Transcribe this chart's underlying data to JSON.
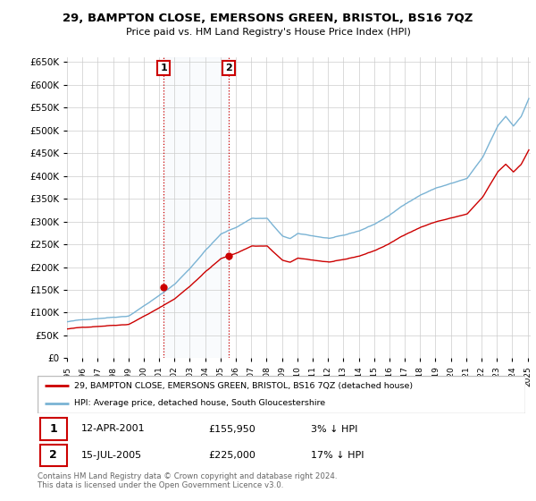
{
  "title": "29, BAMPTON CLOSE, EMERSONS GREEN, BRISTOL, BS16 7QZ",
  "subtitle": "Price paid vs. HM Land Registry's House Price Index (HPI)",
  "ylim": [
    0,
    660000
  ],
  "yticks": [
    0,
    50000,
    100000,
    150000,
    200000,
    250000,
    300000,
    350000,
    400000,
    450000,
    500000,
    550000,
    600000,
    650000
  ],
  "sale1_year": 2001.29,
  "sale1_price": 155950,
  "sale2_year": 2005.54,
  "sale2_price": 225000,
  "legend_line1": "29, BAMPTON CLOSE, EMERSONS GREEN, BRISTOL, BS16 7QZ (detached house)",
  "legend_line2": "HPI: Average price, detached house, South Gloucestershire",
  "footer": "Contains HM Land Registry data © Crown copyright and database right 2024.\nThis data is licensed under the Open Government Licence v3.0.",
  "line_color_red": "#cc0000",
  "line_color_blue": "#7ab3d4",
  "shade_color": "#d8e8f5",
  "grid_color": "#cccccc"
}
